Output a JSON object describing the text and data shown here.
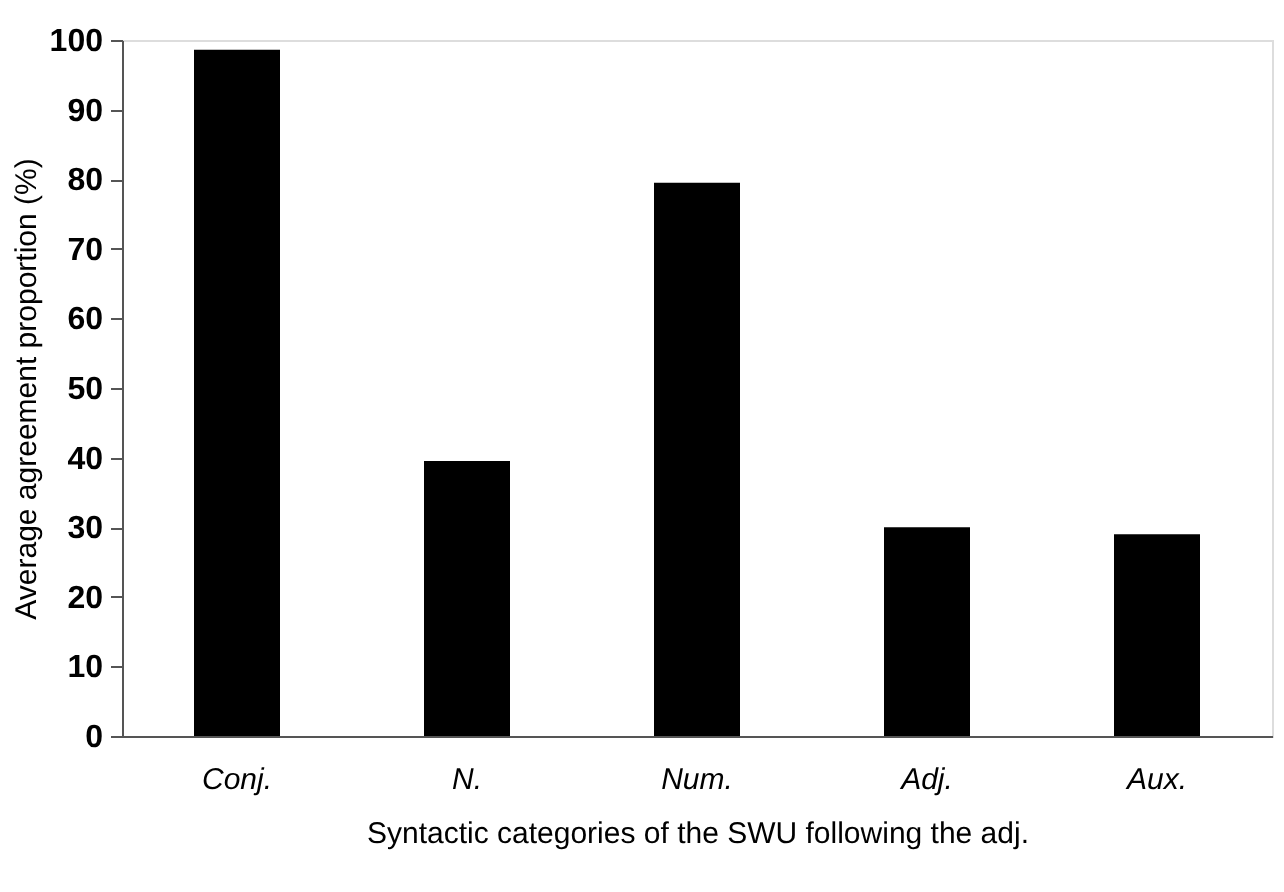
{
  "chart_data": {
    "type": "bar",
    "xlabel": "Syntactic categories of the SWU following the adj.",
    "ylabel": "Average agreement proportion (%)",
    "categories": [
      "Conj.",
      "N.",
      "Num.",
      "Adj.",
      "Aux."
    ],
    "values": [
      98.6,
      39.5,
      79.5,
      30.0,
      29.0
    ],
    "color": "#000000",
    "ylim": [
      0,
      100
    ],
    "yticks": [
      0,
      10,
      20,
      30,
      40,
      50,
      60,
      70,
      80,
      90,
      100
    ],
    "grid": false
  }
}
